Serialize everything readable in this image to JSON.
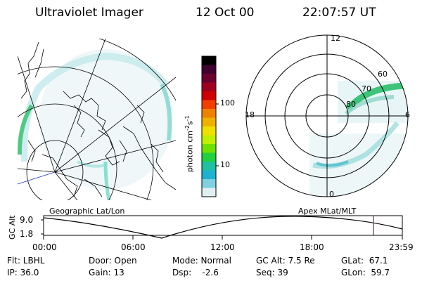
{
  "header": {
    "instrument": "Ultraviolet Imager",
    "date": "12 Oct 00",
    "time": "22:07:57 UT"
  },
  "left_map": {
    "label": "Geographic Lat/Lon"
  },
  "right_map": {
    "label": "Apex MLat/MLT",
    "mlt_labels": [
      "12",
      "6",
      "0",
      "18"
    ],
    "mlat_labels": [
      "60",
      "70",
      "80"
    ]
  },
  "colorbar": {
    "unit": "photon cm",
    "unit_sup1": "-2",
    "unit_mid": "s",
    "unit_sup2": "-1",
    "ticks": [
      "100",
      "10"
    ],
    "colors": [
      "#000000",
      "#400030",
      "#6a0030",
      "#a00020",
      "#d00000",
      "#f04000",
      "#f08000",
      "#f0b000",
      "#f0e000",
      "#c0f000",
      "#70e000",
      "#20d040",
      "#20c0a0",
      "#20b0d0",
      "#80d0e0",
      "#e0f0f0"
    ]
  },
  "timeline": {
    "axis_label": "GC Alt",
    "y_ticks": [
      "9.0",
      "1.8"
    ],
    "x_ticks": [
      "00:00",
      "06:00",
      "12:00",
      "18:00",
      "23:59"
    ],
    "marker_color": "#e00000"
  },
  "info": {
    "filter": "Flt: LBHL",
    "ip": "IP: 36.0",
    "door": "Door: Open",
    "gain": "Gain: 13",
    "mode": "Mode: Normal",
    "dsp": "Dsp:    -2.6",
    "gc_alt": "GC Alt: 7.5 Re",
    "seq": "Seq: 39",
    "glat": "GLat:  67.1",
    "glon": "GLon:  59.7"
  }
}
